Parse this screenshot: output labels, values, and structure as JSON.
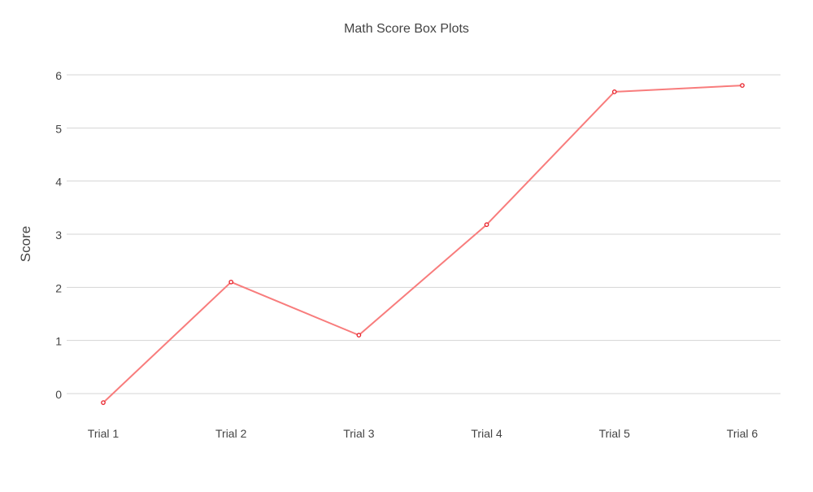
{
  "chart_data": {
    "type": "line",
    "title": "Math Score Box Plots",
    "xlabel": "",
    "ylabel": "Score",
    "categories": [
      "Trial 1",
      "Trial 2",
      "Trial 3",
      "Trial 4",
      "Trial 5",
      "Trial 6"
    ],
    "series": [
      {
        "values": [
          -0.17,
          2.1,
          1.1,
          3.18,
          5.68,
          5.8
        ]
      }
    ],
    "yticks": [
      0,
      1,
      2,
      3,
      4,
      5,
      6
    ],
    "ylim": [
      -0.5,
      6.5
    ],
    "grid": true,
    "colors": {
      "line": "#f87c7c",
      "marker": "#e8212a",
      "grid": "#d4d4d4",
      "text": "#444444"
    }
  }
}
